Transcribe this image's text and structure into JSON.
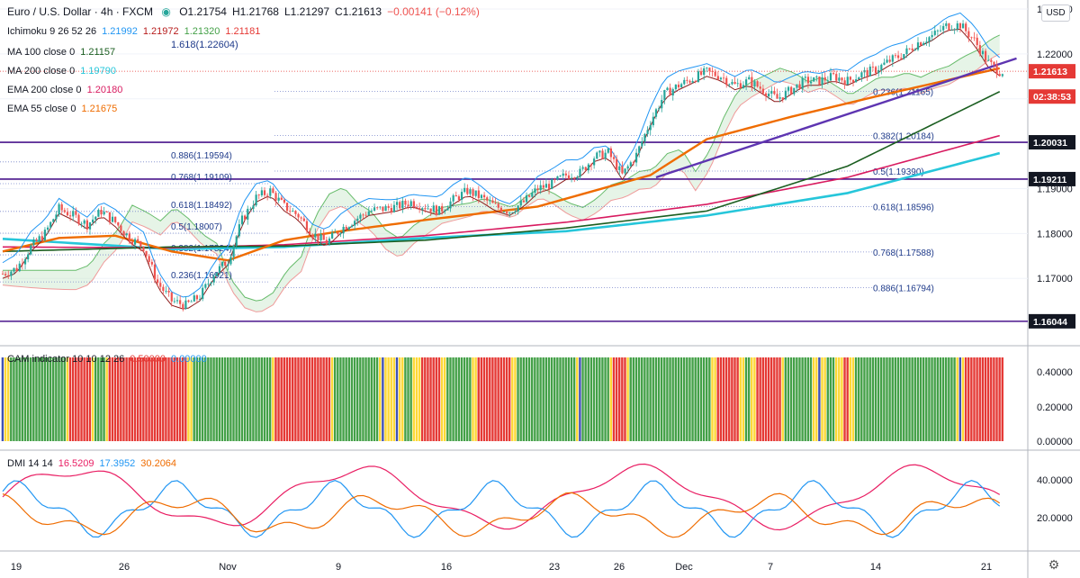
{
  "header": {
    "symbol": "Euro / U.S. Dollar · 4h · FXCM",
    "o": "O1.21754",
    "h": "H1.21768",
    "l": "L1.21297",
    "c": "C1.21613",
    "chg": "−0.00141 (−0.12%)"
  },
  "legend": [
    {
      "label": "Ichimoku 9 26 52 26",
      "values": [
        {
          "v": "1.21992",
          "c": "#2196f3"
        },
        {
          "v": "1.21972",
          "c": "#b71c1c"
        },
        {
          "v": "1.21320",
          "c": "#43a047"
        },
        {
          "v": "1.21181",
          "c": "#e53935"
        }
      ]
    },
    {
      "label": "",
      "values": [
        {
          "v": "1.618(1.22604)",
          "c": "#1e3a8a"
        }
      ]
    },
    {
      "label": "MA 100 close 0",
      "values": [
        {
          "v": "1.21157",
          "c": "#1b5e20"
        }
      ]
    },
    {
      "label": "MA 200 close 0",
      "values": [
        {
          "v": "1.19790",
          "c": "#26c6da"
        }
      ]
    },
    {
      "label": "EMA 200 close 0",
      "values": [
        {
          "v": "1.20180",
          "c": "#d81b60"
        }
      ]
    },
    {
      "label": "EMA 55 close 0",
      "values": [
        {
          "v": "1.21675",
          "c": "#ef6c00"
        }
      ]
    }
  ],
  "currency_button": "USD",
  "price_axis": {
    "ticks": [
      "1.23000",
      "1.22000",
      "1.21000",
      "1.19000",
      "1.18000",
      "1.17000"
    ],
    "labels": [
      {
        "text": "1.21613",
        "value": 1.21613,
        "color": "#e53935"
      },
      {
        "text": "02:38:53",
        "value": 1.2105,
        "color": "#e53935"
      },
      {
        "text": "1.20031",
        "value": 1.20031,
        "color": "#131722"
      },
      {
        "text": "1.19211",
        "value": 1.19211,
        "color": "#131722"
      },
      {
        "text": "1.16044",
        "value": 1.16044,
        "color": "#131722"
      }
    ]
  },
  "horizontal_levels": [
    1.20031,
    1.19211,
    1.16044
  ],
  "fib_left": [
    {
      "text": "0.886(1.19594)",
      "value": 1.19594
    },
    {
      "text": "0.768(1.19109)",
      "value": 1.19109
    },
    {
      "text": "0.618(1.18492)",
      "value": 1.18492
    },
    {
      "text": "0.5(1.18007)",
      "value": 1.18007
    },
    {
      "text": "0.382(1.17524)",
      "value": 1.17524
    },
    {
      "text": "0.236(1.16921)",
      "value": 1.16921
    }
  ],
  "fib_right": [
    {
      "text": "0.236(1.21165)",
      "value": 1.21165
    },
    {
      "text": "0.382(1.20184)",
      "value": 1.20184
    },
    {
      "text": "0.5(1.19390)",
      "value": 1.1939
    },
    {
      "text": "0.618(1.18596)",
      "value": 1.18596
    },
    {
      "text": "0.768(1.17588)",
      "value": 1.17588
    },
    {
      "text": "0.886(1.16794)",
      "value": 1.16794
    }
  ],
  "cam": {
    "label": "CAM indicator 10 10 12 26",
    "v1": "0.50000",
    "v2": "0.00000",
    "ticks": [
      "0.40000",
      "0.20000",
      "0.00000"
    ]
  },
  "dmi": {
    "label": "DMI 14 14",
    "v1": "16.5209",
    "v2": "17.3952",
    "v3": "30.2064",
    "ticks": [
      "40.0000",
      "20.0000"
    ]
  },
  "time_axis": [
    "19",
    "26",
    "Nov",
    "2",
    "9",
    "16",
    "23",
    "26",
    "Dec",
    "7",
    "14",
    "21"
  ],
  "colors": {
    "bull": "#26a69a",
    "bear": "#ef5350",
    "ma100": "#1b5e20",
    "ma200": "#26c6da",
    "ema200": "#d81b60",
    "ema55": "#ef6c00",
    "trend": "#5e35b1",
    "level": "#4a148c",
    "cloud_bull": "#c8e6c9",
    "cloud_bear": "#ffcdd2"
  },
  "chart_data": {
    "type": "candlestick",
    "symbol": "EUR/USD",
    "timeframe": "4h",
    "ylim": [
      1.155,
      1.232
    ],
    "x_labels": [
      "19",
      "26",
      "Nov",
      "2",
      "9",
      "16",
      "23",
      "26",
      "Dec",
      "7",
      "14",
      "21"
    ],
    "close_path": [
      [
        0,
        1.171
      ],
      [
        5,
        1.1722
      ],
      [
        10,
        1.177
      ],
      [
        15,
        1.18
      ],
      [
        20,
        1.1855
      ],
      [
        25,
        1.184
      ],
      [
        30,
        1.182
      ],
      [
        35,
        1.185
      ],
      [
        40,
        1.1825
      ],
      [
        45,
        1.179
      ],
      [
        50,
        1.177
      ],
      [
        55,
        1.169
      ],
      [
        60,
        1.165
      ],
      [
        65,
        1.164
      ],
      [
        70,
        1.166
      ],
      [
        75,
        1.171
      ],
      [
        80,
        1.174
      ],
      [
        85,
        1.183
      ],
      [
        90,
        1.188
      ],
      [
        95,
        1.1895
      ],
      [
        100,
        1.186
      ],
      [
        105,
        1.184
      ],
      [
        110,
        1.18
      ],
      [
        115,
        1.178
      ],
      [
        120,
        1.181
      ],
      [
        125,
        1.183
      ],
      [
        130,
        1.185
      ],
      [
        135,
        1.1855
      ],
      [
        140,
        1.186
      ],
      [
        145,
        1.187
      ],
      [
        150,
        1.186
      ],
      [
        155,
        1.185
      ],
      [
        160,
        1.1875
      ],
      [
        165,
        1.1895
      ],
      [
        170,
        1.188
      ],
      [
        175,
        1.186
      ],
      [
        180,
        1.185
      ],
      [
        185,
        1.187
      ],
      [
        190,
        1.19
      ],
      [
        195,
        1.191
      ],
      [
        200,
        1.193
      ],
      [
        205,
        1.1935
      ],
      [
        210,
        1.197
      ],
      [
        215,
        1.198
      ],
      [
        220,
        1.193
      ],
      [
        225,
        1.1975
      ],
      [
        230,
        1.205
      ],
      [
        235,
        1.211
      ],
      [
        240,
        1.213
      ],
      [
        245,
        1.2145
      ],
      [
        250,
        1.216
      ],
      [
        255,
        1.215
      ],
      [
        260,
        1.213
      ],
      [
        265,
        1.214
      ],
      [
        270,
        1.212
      ],
      [
        275,
        1.21
      ],
      [
        280,
        1.212
      ],
      [
        285,
        1.214
      ],
      [
        290,
        1.214
      ],
      [
        295,
        1.215
      ],
      [
        300,
        1.214
      ],
      [
        305,
        1.2155
      ],
      [
        310,
        1.2165
      ],
      [
        315,
        1.2185
      ],
      [
        320,
        1.22
      ],
      [
        325,
        1.2225
      ],
      [
        330,
        1.224
      ],
      [
        335,
        1.2262
      ],
      [
        340,
        1.2265
      ],
      [
        345,
        1.223
      ],
      [
        350,
        1.218
      ],
      [
        354,
        1.2161
      ]
    ],
    "ma100": [
      [
        0,
        1.176
      ],
      [
        60,
        1.177
      ],
      [
        100,
        1.1772
      ],
      [
        150,
        1.1785
      ],
      [
        200,
        1.1812
      ],
      [
        250,
        1.185
      ],
      [
        300,
        1.195
      ],
      [
        354,
        1.2116
      ]
    ],
    "ma200": [
      [
        0,
        1.1788
      ],
      [
        60,
        1.1765
      ],
      [
        100,
        1.177
      ],
      [
        150,
        1.179
      ],
      [
        200,
        1.1805
      ],
      [
        250,
        1.184
      ],
      [
        300,
        1.189
      ],
      [
        354,
        1.1979
      ]
    ],
    "ema200": [
      [
        0,
        1.177
      ],
      [
        60,
        1.1768
      ],
      [
        100,
        1.1775
      ],
      [
        150,
        1.1795
      ],
      [
        200,
        1.1825
      ],
      [
        250,
        1.1865
      ],
      [
        300,
        1.1925
      ],
      [
        354,
        1.2018
      ]
    ],
    "ema55": [
      [
        0,
        1.176
      ],
      [
        20,
        1.179
      ],
      [
        40,
        1.1795
      ],
      [
        60,
        1.176
      ],
      [
        80,
        1.174
      ],
      [
        100,
        1.1785
      ],
      [
        120,
        1.1805
      ],
      [
        150,
        1.183
      ],
      [
        190,
        1.186
      ],
      [
        230,
        1.193
      ],
      [
        250,
        1.201
      ],
      [
        280,
        1.206
      ],
      [
        310,
        1.2105
      ],
      [
        354,
        1.2168
      ]
    ],
    "trendline": [
      [
        232,
        1.1925
      ],
      [
        360,
        1.219
      ]
    ]
  }
}
